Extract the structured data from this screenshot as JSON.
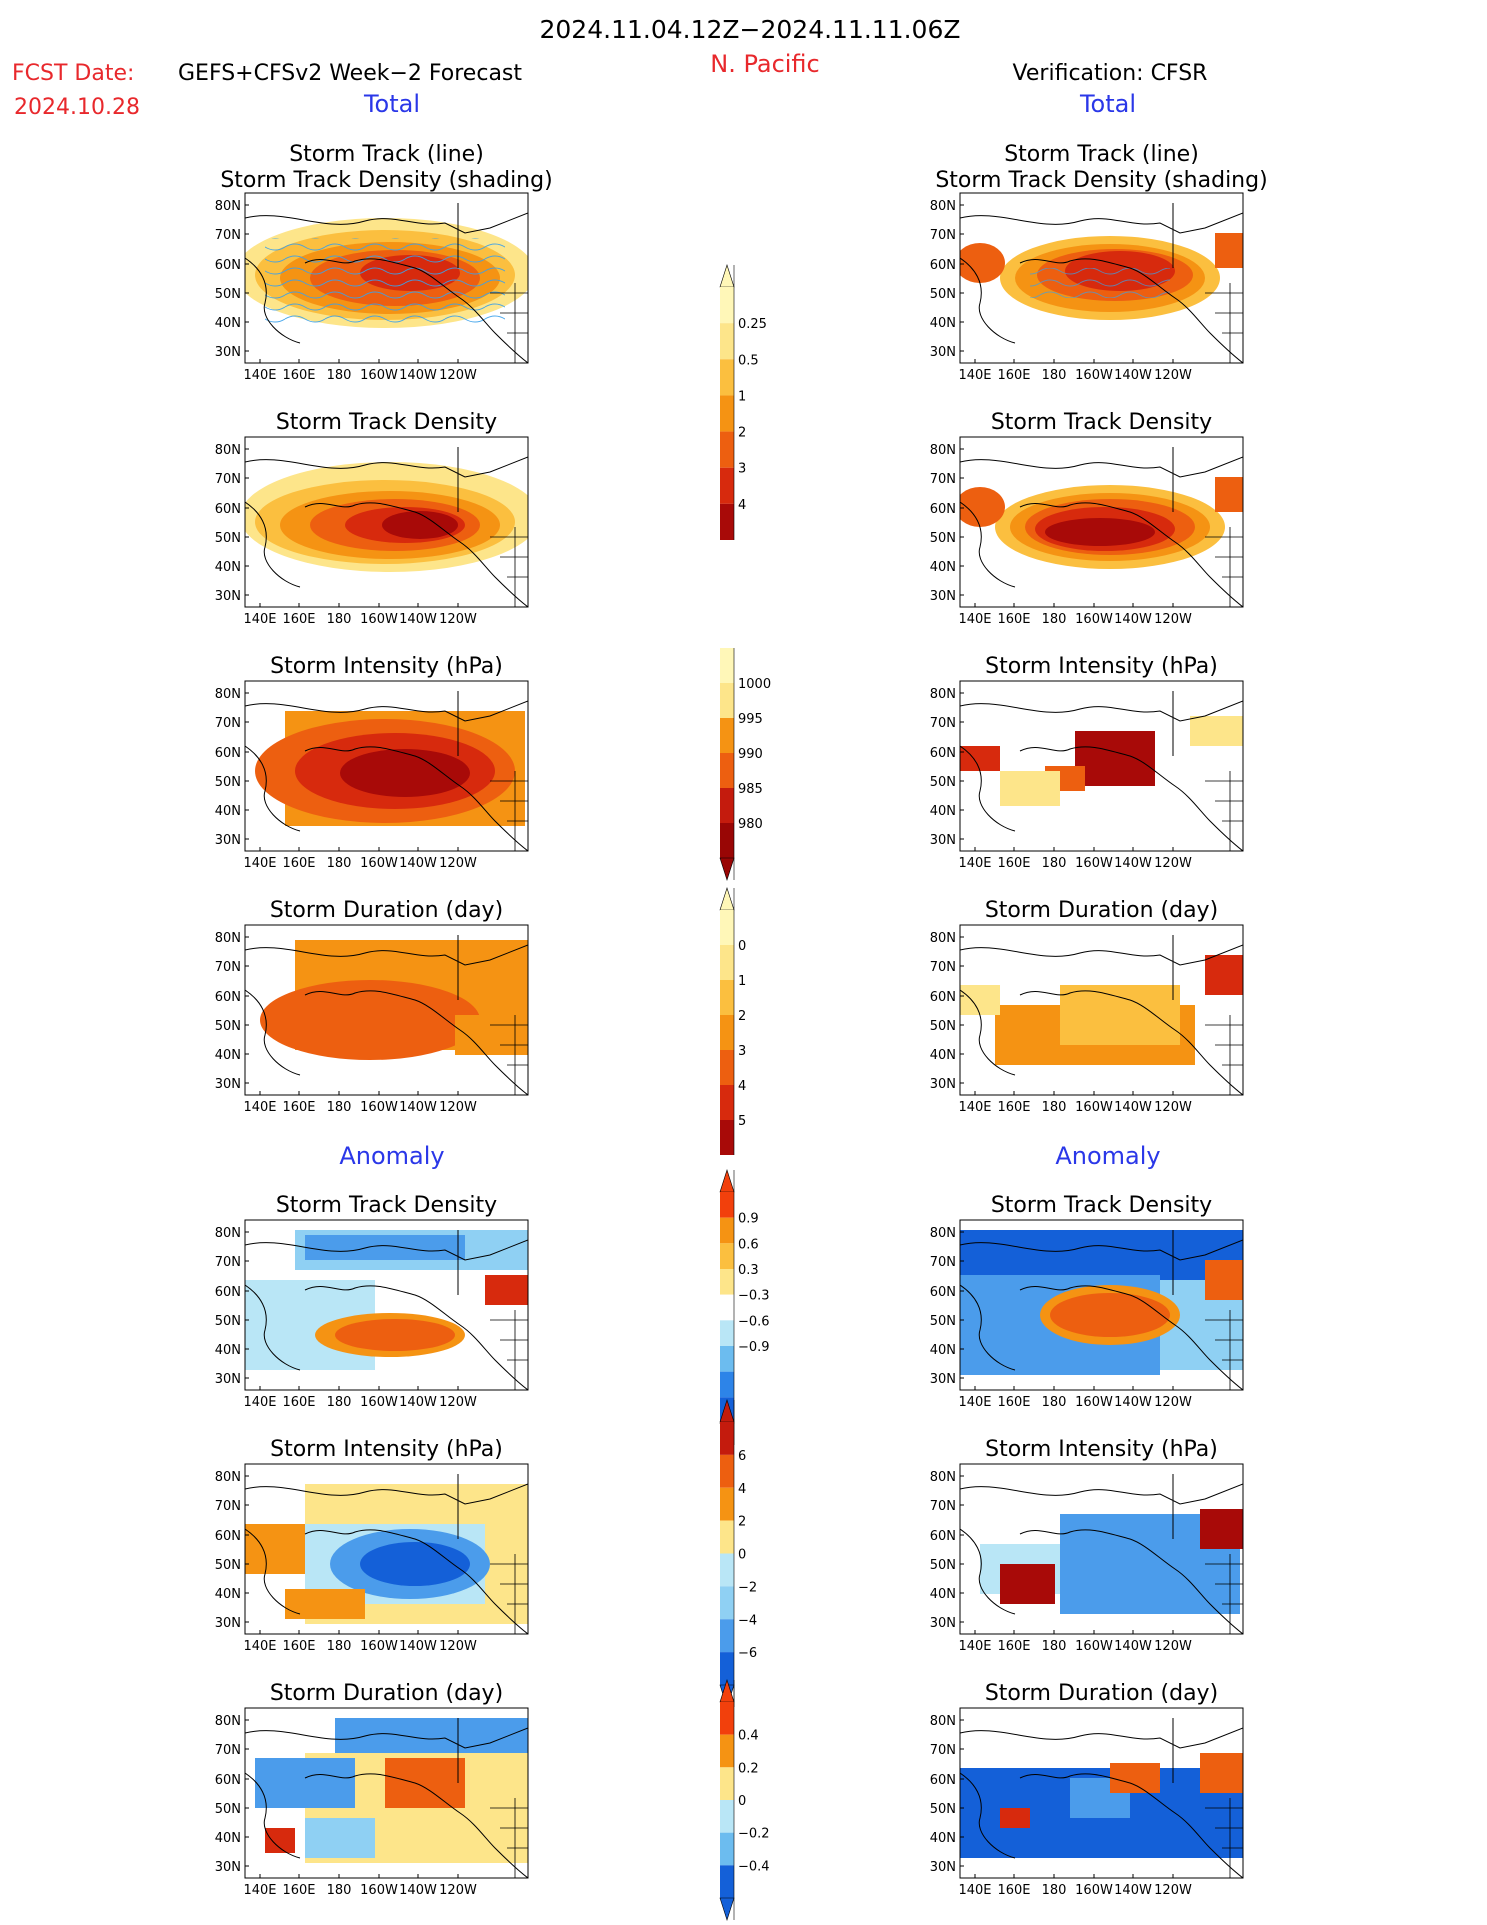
{
  "header": {
    "date_range": "2024.11.04.12Z−2024.11.11.06Z",
    "fcst_label": "FCST Date:",
    "fcst_model": "GEFS+CFSv2 Week−2 Forecast",
    "fcst_date": "2024.10.28",
    "region": "N. Pacific",
    "verification": "Verification: CFSR"
  },
  "sections": {
    "total": "Total",
    "anomaly": "Anomaly"
  },
  "panel_titles": {
    "track_line": "Storm Track (line)",
    "track_shading": "Storm Track Density (shading)",
    "density": "Storm Track Density",
    "intensity": "Storm Intensity (hPa)",
    "duration": "Storm Duration (day)"
  },
  "axes": {
    "lat_ticks": [
      "80N",
      "70N",
      "60N",
      "50N",
      "40N",
      "30N"
    ],
    "lon_ticks": [
      "140E",
      "160E",
      "180",
      "160W",
      "140W",
      "120W"
    ]
  },
  "colorbars": {
    "density_total": {
      "labels": [
        "0.25",
        "0.5",
        "1",
        "2",
        "3",
        "4"
      ],
      "colors": [
        "#fff7b8",
        "#fde58a",
        "#fbbf3f",
        "#f59313",
        "#ed5f10",
        "#d72a0d",
        "#a80a08"
      ]
    },
    "intensity_total": {
      "labels": [
        "1000",
        "995",
        "990",
        "985",
        "980"
      ],
      "colors": [
        "#fff7b8",
        "#fde58a",
        "#f59313",
        "#ed5f10",
        "#c41b0d",
        "#990605"
      ]
    },
    "duration_total": {
      "labels": [
        "0",
        "1",
        "2",
        "3",
        "4",
        "5"
      ],
      "colors": [
        "#fff7b8",
        "#fde58a",
        "#fbbf3f",
        "#f59313",
        "#ed5f10",
        "#d72a0d",
        "#a80a08"
      ]
    },
    "density_anom": {
      "labels": [
        "0.9",
        "0.6",
        "0.3",
        "−0.3",
        "−0.6",
        "−0.9"
      ],
      "colors": [
        "#f2400c",
        "#f59313",
        "#fbbf3f",
        "#fde58a",
        "#ffffff",
        "#b9e6f6",
        "#6cbcef",
        "#2d84e8",
        "#1460d8"
      ]
    },
    "intensity_anom": {
      "labels": [
        "6",
        "4",
        "2",
        "0",
        "−2",
        "−4",
        "−6"
      ],
      "colors": [
        "#c41b0d",
        "#ed5f10",
        "#f59313",
        "#fde58a",
        "#b9e6f6",
        "#8fd0f3",
        "#4b9ceb",
        "#1460d8"
      ]
    },
    "duration_anom": {
      "labels": [
        "0.4",
        "0.2",
        "0",
        "−0.2",
        "−0.4"
      ],
      "colors": [
        "#f2400c",
        "#f59313",
        "#fde58a",
        "#b9e6f6",
        "#6cbcef",
        "#1460d8"
      ]
    }
  },
  "chart_data": [
    {
      "type": "heatmap",
      "column": "forecast",
      "title": "Storm Track (line) / Storm Track Density (shading)",
      "xlabel": "",
      "ylabel": "",
      "xlim": [
        140,
        250
      ],
      "ylim": [
        25,
        85
      ]
    },
    {
      "type": "heatmap",
      "column": "forecast",
      "title": "Storm Track Density",
      "colorbar": [
        0.25,
        0.5,
        1,
        2,
        3,
        4
      ]
    },
    {
      "type": "heatmap",
      "column": "forecast",
      "title": "Storm Intensity (hPa)",
      "colorbar": [
        1000,
        995,
        990,
        985,
        980
      ]
    },
    {
      "type": "heatmap",
      "column": "forecast",
      "title": "Storm Duration (day)",
      "colorbar": [
        0,
        1,
        2,
        3,
        4,
        5
      ]
    },
    {
      "type": "heatmap",
      "column": "forecast",
      "title": "Storm Track Density",
      "section": "Anomaly",
      "colorbar": [
        0.9,
        0.6,
        0.3,
        -0.3,
        -0.6,
        -0.9
      ]
    },
    {
      "type": "heatmap",
      "column": "forecast",
      "title": "Storm Intensity (hPa)",
      "section": "Anomaly",
      "colorbar": [
        6,
        4,
        2,
        0,
        -2,
        -4,
        -6
      ]
    },
    {
      "type": "heatmap",
      "column": "forecast",
      "title": "Storm Duration (day)",
      "section": "Anomaly",
      "colorbar": [
        0.4,
        0.2,
        0,
        -0.2,
        -0.4
      ]
    },
    {
      "type": "heatmap",
      "column": "verification",
      "title": "Storm Track (line) / Storm Track Density (shading)"
    },
    {
      "type": "heatmap",
      "column": "verification",
      "title": "Storm Track Density"
    },
    {
      "type": "heatmap",
      "column": "verification",
      "title": "Storm Intensity (hPa)"
    },
    {
      "type": "heatmap",
      "column": "verification",
      "title": "Storm Duration (day)"
    },
    {
      "type": "heatmap",
      "column": "verification",
      "title": "Storm Track Density",
      "section": "Anomaly"
    },
    {
      "type": "heatmap",
      "column": "verification",
      "title": "Storm Intensity (hPa)",
      "section": "Anomaly"
    },
    {
      "type": "heatmap",
      "column": "verification",
      "title": "Storm Duration (day)",
      "section": "Anomaly"
    }
  ]
}
